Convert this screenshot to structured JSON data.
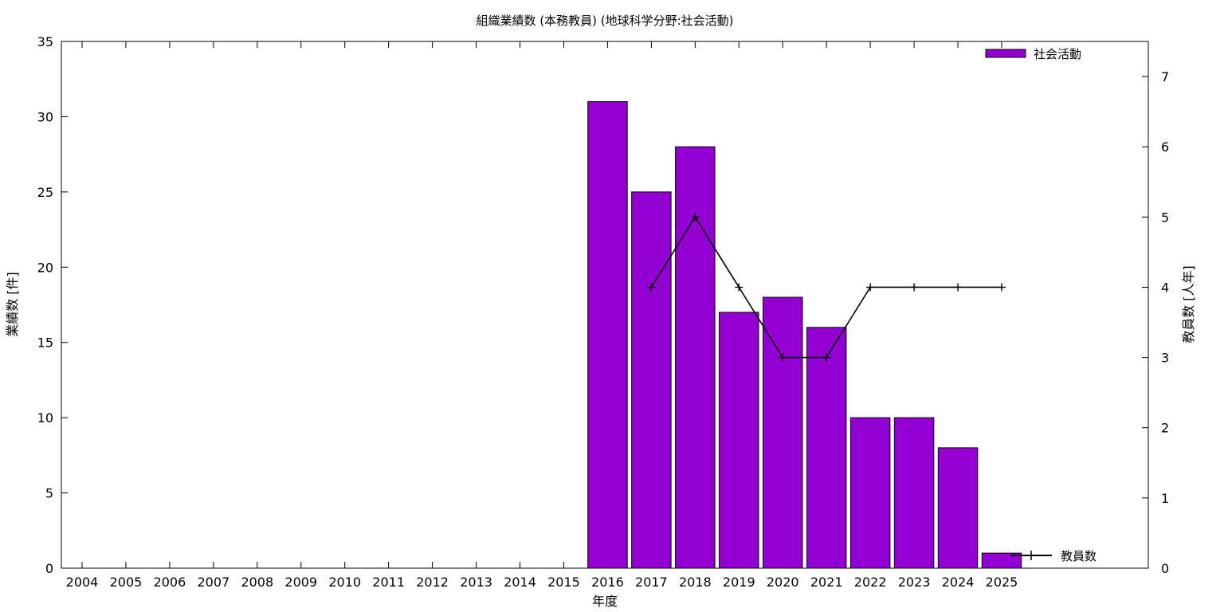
{
  "chart_data": {
    "type": "bar",
    "title": "組織業績数 (本務教員) (地球科学分野:社会活動)",
    "xlabel": "年度",
    "ylabel": "業績数 [件]",
    "y2label": "教員数 [人年]",
    "categories": [
      "2004",
      "2005",
      "2006",
      "2007",
      "2008",
      "2009",
      "2010",
      "2011",
      "2012",
      "2013",
      "2014",
      "2015",
      "2016",
      "2017",
      "2018",
      "2019",
      "2020",
      "2021",
      "2022",
      "2023",
      "2024",
      "2025"
    ],
    "ylim": [
      0,
      35
    ],
    "y_ticks": [
      0,
      5,
      10,
      15,
      20,
      25,
      30,
      35
    ],
    "y2lim": [
      0,
      7.5
    ],
    "y2_ticks": [
      0,
      1,
      2,
      3,
      4,
      5,
      6,
      7
    ],
    "grid": false,
    "series": [
      {
        "name": "社会活動",
        "kind": "bar",
        "axis": "left",
        "color": "#9400d3",
        "values": [
          null,
          null,
          null,
          null,
          null,
          null,
          null,
          null,
          null,
          null,
          null,
          null,
          31,
          25,
          28,
          17,
          18,
          16,
          10,
          10,
          8,
          1
        ]
      },
      {
        "name": "教員数",
        "kind": "line",
        "axis": "right",
        "color": "#000000",
        "values": [
          null,
          null,
          null,
          null,
          null,
          null,
          null,
          null,
          null,
          null,
          null,
          null,
          null,
          4,
          5,
          4,
          3,
          3,
          4,
          4,
          4,
          4
        ]
      }
    ],
    "legend": [
      {
        "label": "社会活動",
        "position": "top-right"
      },
      {
        "label": "教員数",
        "position": "bottom-right"
      }
    ]
  }
}
